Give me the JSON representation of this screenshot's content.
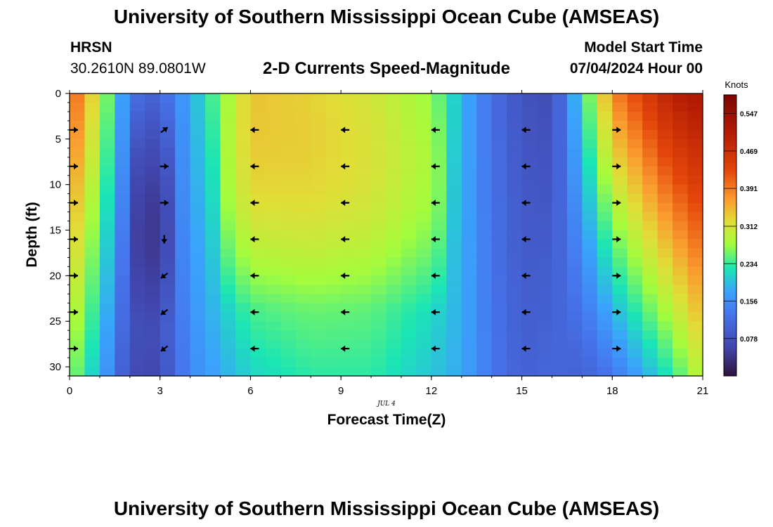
{
  "header": {
    "title": "University of Southern Mississippi Ocean Cube (AMSEAS)",
    "station_name": "HRSN",
    "station_coords": "30.2610N  89.0801W",
    "plot_title": "2-D Currents Speed-Magnitude",
    "model_start_label": "Model Start Time",
    "model_start_value": "07/04/2024 Hour 00"
  },
  "footer": {
    "title": "University of Southern Mississippi Ocean Cube (AMSEAS)"
  },
  "chart_data": {
    "type": "heatmap",
    "title": "2-D Currents Speed-Magnitude",
    "xlabel": "Forecast Time(Z)",
    "ylabel": "Depth (ft)",
    "x_sublabel": "JUL 4",
    "xlim": [
      0,
      21
    ],
    "ylim": [
      0,
      31
    ],
    "y_inverted": true,
    "x_ticks": [
      "0",
      "3",
      "6",
      "9",
      "12",
      "15",
      "18",
      "21"
    ],
    "y_ticks": [
      "0",
      "5",
      "10",
      "15",
      "20",
      "25",
      "30"
    ],
    "colorbar": {
      "label": "Knots",
      "min": 0.0,
      "max": 0.586,
      "ticks": [
        "0.547",
        "0.469",
        "0.391",
        "0.312",
        "0.234",
        "0.156",
        "0.078"
      ]
    },
    "profile_speeds": [
      {
        "hour": 0,
        "top": 0.42,
        "bottom": 0.27
      },
      {
        "hour": 1,
        "top": 0.3,
        "bottom": 0.19
      },
      {
        "hour": 2,
        "top": 0.13,
        "bottom": 0.07
      },
      {
        "hour": 2.6,
        "top": 0.1,
        "bottom": 0.06
      },
      {
        "hour": 3,
        "top": 0.11,
        "bottom": 0.07
      },
      {
        "hour": 4,
        "top": 0.18,
        "bottom": 0.15
      },
      {
        "hour": 6,
        "top": 0.34,
        "bottom": 0.21
      },
      {
        "hour": 8,
        "top": 0.33,
        "bottom": 0.23
      },
      {
        "hour": 10,
        "top": 0.31,
        "bottom": 0.23
      },
      {
        "hour": 12,
        "top": 0.27,
        "bottom": 0.2
      },
      {
        "hour": 13,
        "top": 0.19,
        "bottom": 0.18
      },
      {
        "hour": 14,
        "top": 0.12,
        "bottom": 0.13
      },
      {
        "hour": 15,
        "top": 0.08,
        "bottom": 0.1
      },
      {
        "hour": 16,
        "top": 0.07,
        "bottom": 0.11
      },
      {
        "hour": 17,
        "top": 0.22,
        "bottom": 0.1
      },
      {
        "hour": 18,
        "top": 0.38,
        "bottom": 0.13
      },
      {
        "hour": 19,
        "top": 0.44,
        "bottom": 0.18
      },
      {
        "hour": 20,
        "top": 0.5,
        "bottom": 0.23
      },
      {
        "hour": 21,
        "top": 0.52,
        "bottom": 0.3
      }
    ],
    "arrow_hours": [
      0,
      3,
      6,
      9,
      12,
      15,
      18
    ],
    "arrow_depths": [
      4,
      8,
      12,
      16,
      20,
      24,
      28
    ],
    "arrow_directions": [
      [
        "east",
        "east",
        "east",
        "east",
        "east",
        "east",
        "east"
      ],
      [
        "northeast",
        "east",
        "east",
        "south",
        "southwest",
        "southwest",
        "southwest"
      ],
      [
        "west",
        "west",
        "west",
        "west",
        "west",
        "west",
        "west"
      ],
      [
        "west",
        "west",
        "west",
        "west",
        "west",
        "west",
        "west"
      ],
      [
        "west",
        "west",
        "west",
        "west",
        "west",
        "west",
        "west"
      ],
      [
        "west",
        "west",
        "west",
        "west",
        "west",
        "west",
        "west"
      ],
      [
        "east",
        "east",
        "east",
        "east",
        "east",
        "east",
        "east"
      ]
    ]
  }
}
